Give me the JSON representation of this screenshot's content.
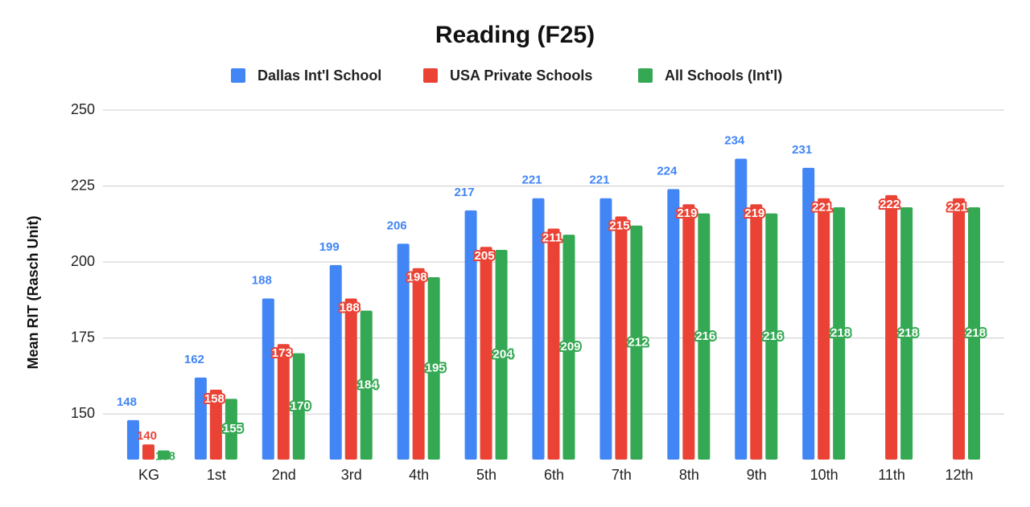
{
  "chart_data": {
    "type": "bar",
    "title": "Reading (F25)",
    "y_label": "Mean RIT (Rasch Unit)",
    "categories": [
      "KG",
      "1st",
      "2nd",
      "3rd",
      "4th",
      "5th",
      "6th",
      "7th",
      "8th",
      "9th",
      "10th",
      "11th",
      "12th"
    ],
    "series": [
      {
        "name": "Dallas Int'l School",
        "color": "#4285f4",
        "values": [
          148,
          162,
          188,
          199,
          206,
          217,
          221,
          221,
          224,
          234,
          231,
          null,
          null
        ]
      },
      {
        "name": "USA Private Schools",
        "color": "#ea4335",
        "values": [
          140,
          158,
          173,
          188,
          198,
          205,
          211,
          215,
          219,
          219,
          221,
          222,
          221
        ]
      },
      {
        "name": "All Schools (Int'l)",
        "color": "#34a853",
        "values": [
          138,
          155,
          170,
          184,
          195,
          204,
          209,
          212,
          216,
          216,
          218,
          218,
          218
        ]
      }
    ],
    "ylim": [
      135,
      250
    ],
    "yticks": [
      150,
      175,
      200,
      225,
      250
    ],
    "grid": true,
    "legend": "top"
  }
}
